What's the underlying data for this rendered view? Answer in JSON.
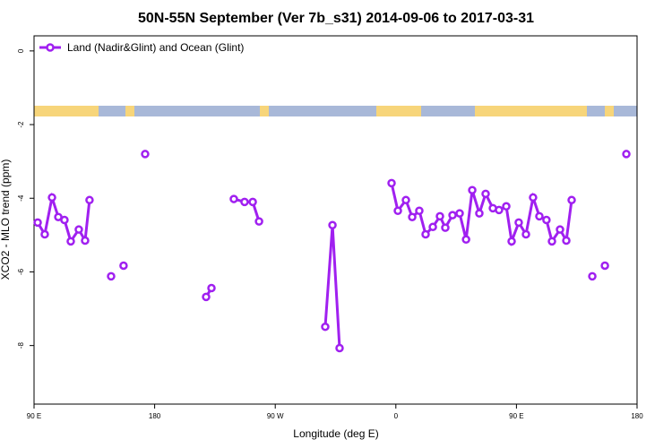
{
  "chart_data": {
    "type": "line",
    "title": "50N-55N September (Ver 7b_s31)   2014-09-06 to 2017-03-31",
    "x_label": "Longitude (deg E)",
    "y_label": "XCO2 - MLO trend (ppm)",
    "xlim": [
      90,
      540
    ],
    "ylim": [
      -9.59,
      0.41
    ],
    "xticks": [
      {
        "value": 90,
        "label": "90 E"
      },
      180,
      {
        "value": 270,
        "label": "90 W"
      },
      {
        "value": 360,
        "label": "0"
      },
      {
        "value": 450,
        "label": "90 E"
      },
      {
        "value": 540,
        "label": "180"
      }
    ],
    "yticks": [
      0,
      -2,
      -4,
      -6,
      -8
    ],
    "legend": "top-left",
    "grid": false,
    "x": [
      92.7,
      98.0,
      103.4,
      108.1,
      112.7,
      117.4,
      123.4,
      128.1,
      131.4,
      null,
      147.5,
      null,
      156.8,
      null,
      172.9,
      null,
      218.4,
      222.4,
      null,
      239.1,
      247.1,
      253.2,
      257.9,
      null,
      307.3,
      312.7,
      318.0,
      null,
      356.8,
      361.5,
      367.5,
      372.2,
      377.5,
      382.2,
      387.6,
      392.9,
      396.9,
      402.3,
      407.6,
      412.4,
      417.0,
      422.3,
      427.0,
      432.4,
      437.0,
      442.4,
      446.4,
      451.7,
      457.1,
      462.4,
      467.1,
      472.4,
      476.5,
      482.5,
      487.2,
      491.2,
      null,
      506.6,
      null,
      516.0,
      null,
      532.0
    ],
    "series": [
      {
        "name": "Land (Nadir&Glint) and Ocean (Glint)",
        "color": "#a020f0",
        "values": [
          -4.66,
          -4.98,
          -3.98,
          -4.51,
          -4.59,
          -5.17,
          -4.85,
          -5.15,
          -4.05,
          null,
          -6.12,
          null,
          -5.83,
          null,
          -2.8,
          null,
          -6.68,
          -6.44,
          null,
          -4.02,
          -4.1,
          -4.1,
          -4.63,
          null,
          -7.49,
          -4.73,
          -8.07,
          null,
          -3.59,
          -4.34,
          -4.05,
          -4.51,
          -4.34,
          -4.98,
          -4.78,
          -4.49,
          -4.8,
          -4.46,
          -4.41,
          -5.12,
          -3.78,
          -4.41,
          -3.88,
          -4.27,
          -4.32,
          -4.22,
          -5.17,
          -4.66,
          -4.98,
          -3.98,
          -4.49,
          -4.59,
          -5.17,
          -4.85,
          -5.15,
          -4.05,
          null,
          -6.12,
          null,
          -5.83,
          null,
          -2.8
        ]
      }
    ]
  }
}
